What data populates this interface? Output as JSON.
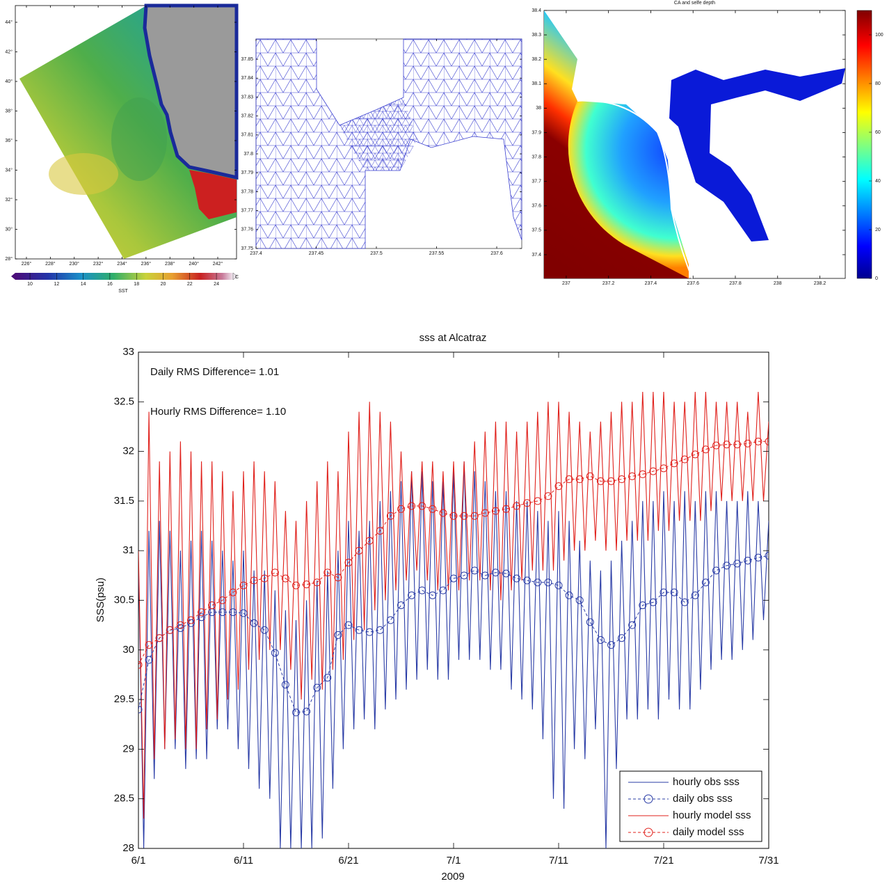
{
  "chart_data": [
    {
      "type": "map",
      "xlim": [
        225.07,
        243.57
      ],
      "ylim": [
        28,
        45.13
      ],
      "xticks": [
        {
          "value": 226,
          "label": "226°"
        },
        {
          "value": 228,
          "label": "228°"
        },
        {
          "value": 230,
          "label": "230°"
        },
        {
          "value": 232,
          "label": "232°"
        },
        {
          "value": 234,
          "label": "234°"
        },
        {
          "value": 236,
          "label": "236°"
        },
        {
          "value": 238,
          "label": "238°"
        },
        {
          "value": 240,
          "label": "240°"
        },
        {
          "value": 242,
          "label": "242°"
        }
      ],
      "yticks": [
        {
          "value": 28,
          "label": "28°"
        },
        {
          "value": 30,
          "label": "30°"
        },
        {
          "value": 32,
          "label": "32°"
        },
        {
          "value": 34,
          "label": "34°"
        },
        {
          "value": 36,
          "label": "36°"
        },
        {
          "value": 38,
          "label": "38°"
        },
        {
          "value": 40,
          "label": "40°"
        },
        {
          "value": 42,
          "label": "42°"
        },
        {
          "value": 44,
          "label": "44°"
        }
      ],
      "colorbar": {
        "orientation": "horizontal",
        "clim": [
          8.9,
          25.25
        ],
        "ticks": [
          10,
          12,
          14,
          16,
          18,
          20,
          22,
          24
        ],
        "label": "SST",
        "unit": "C"
      }
    },
    {
      "type": "mesh",
      "xlim": [
        237.4,
        237.6208
      ],
      "ylim": [
        37.75,
        37.8607
      ],
      "xticks": [
        237.4,
        237.45,
        237.5,
        237.55,
        237.6
      ],
      "yticks": [
        37.75,
        37.76,
        37.77,
        37.78,
        37.79,
        37.8,
        37.81,
        37.82,
        37.83,
        37.84,
        37.85
      ]
    },
    {
      "type": "map",
      "title": "CA  and selfe depth",
      "xlim": [
        236.895,
        238.32
      ],
      "ylim": [
        37.303,
        38.4
      ],
      "xticks": [
        237,
        237.2,
        237.4,
        237.6,
        237.8,
        238,
        238.2
      ],
      "yticks": [
        37.4,
        37.5,
        37.6,
        37.7,
        37.8,
        37.9,
        38,
        38.1,
        38.2,
        38.3,
        38.4
      ],
      "colorbar": {
        "orientation": "vertical",
        "clim": [
          0,
          110
        ],
        "ticks": [
          0,
          20,
          40,
          60,
          80,
          100
        ]
      }
    },
    {
      "type": "line",
      "title": "sss at Alcatraz",
      "xlabel": "2009",
      "ylabel": "SSS(psu)",
      "annotations": [
        "Daily RMS Difference= 1.01",
        "Hourly RMS Difference= 1.10"
      ],
      "xlim": [
        0,
        60
      ],
      "ylim": [
        28,
        33
      ],
      "xticks": [
        {
          "value": 0,
          "label": "6/1"
        },
        {
          "value": 10,
          "label": "6/11"
        },
        {
          "value": 20,
          "label": "6/21"
        },
        {
          "value": 30,
          "label": "7/1"
        },
        {
          "value": 40,
          "label": "7/11"
        },
        {
          "value": 50,
          "label": "7/21"
        },
        {
          "value": 60,
          "label": "7/31"
        }
      ],
      "yticks": [
        28,
        28.5,
        29,
        29.5,
        30,
        30.5,
        31,
        31.5,
        32,
        32.5,
        33
      ],
      "legend": "lower right",
      "x": [
        0,
        0.5,
        1,
        1.5,
        2,
        2.5,
        3,
        3.5,
        4,
        4.5,
        5,
        5.5,
        6,
        6.5,
        7,
        7.5,
        8,
        8.5,
        9,
        9.5,
        10,
        10.5,
        11,
        11.5,
        12,
        12.5,
        13,
        13.5,
        14,
        14.5,
        15,
        15.5,
        16,
        16.5,
        17,
        17.5,
        18,
        18.5,
        19,
        19.5,
        20,
        20.5,
        21,
        21.5,
        22,
        22.5,
        23,
        23.5,
        24,
        24.5,
        25,
        25.5,
        26,
        26.5,
        27,
        27.5,
        28,
        28.5,
        29,
        29.5,
        30,
        30.5,
        31,
        31.5,
        32,
        32.5,
        33,
        33.5,
        34,
        34.5,
        35,
        35.5,
        36,
        36.5,
        37,
        37.5,
        38,
        38.5,
        39,
        39.5,
        40,
        40.5,
        41,
        41.5,
        42,
        42.5,
        43,
        43.5,
        44,
        44.5,
        45,
        45.5,
        46,
        46.5,
        47,
        47.5,
        48,
        48.5,
        49,
        49.5,
        50,
        50.5,
        51,
        51.5,
        52,
        52.5,
        53,
        53.5,
        54,
        54.5,
        55,
        55.5,
        56,
        56.5,
        57,
        57.5,
        58,
        58.5,
        59,
        59.5,
        60
      ],
      "series": [
        {
          "name": "hourly obs sss",
          "color": "#2a3ca6",
          "linestyle": "solid",
          "marker": "none",
          "values": [
            30.9,
            28.0,
            31.2,
            28.7,
            31.3,
            29.0,
            31.2,
            29.0,
            31.0,
            28.8,
            31.1,
            28.9,
            31.2,
            28.9,
            31.1,
            29.2,
            31.0,
            29.2,
            30.9,
            29.0,
            31.0,
            28.8,
            30.8,
            28.6,
            30.8,
            28.5,
            30.6,
            28.0,
            30.4,
            28.0,
            30.3,
            28.0,
            30.5,
            28.0,
            30.7,
            28.1,
            30.8,
            28.6,
            31.0,
            29.0,
            31.3,
            29.2,
            31.2,
            29.3,
            31.3,
            29.2,
            31.5,
            29.4,
            31.6,
            29.5,
            31.7,
            29.6,
            31.8,
            29.7,
            31.8,
            29.8,
            31.7,
            29.7,
            31.7,
            29.7,
            31.8,
            29.9,
            31.9,
            29.9,
            31.8,
            29.9,
            31.7,
            29.8,
            31.6,
            29.8,
            31.6,
            29.6,
            31.5,
            29.5,
            31.5,
            29.4,
            31.4,
            29.1,
            31.3,
            28.5,
            31.4,
            28.4,
            31.3,
            29.0,
            31.1,
            28.9,
            30.9,
            29.2,
            30.8,
            28.0,
            30.9,
            28.8,
            31.1,
            29.3,
            31.3,
            29.3,
            31.5,
            29.4,
            31.5,
            29.3,
            31.6,
            29.5,
            31.5,
            29.4,
            31.6,
            29.4,
            31.5,
            29.6,
            31.6,
            29.8,
            31.6,
            29.9,
            31.5,
            29.9,
            31.5,
            30.0,
            31.6,
            30.1,
            31.5,
            30.3,
            31.3
          ]
        },
        {
          "name": "daily obs sss",
          "color": "#2a3ca6",
          "linestyle": "dashed",
          "marker": "circle",
          "x": [
            0,
            1,
            2,
            3,
            4,
            5,
            6,
            7,
            8,
            9,
            10,
            11,
            12,
            13,
            14,
            15,
            16,
            17,
            18,
            19,
            20,
            21,
            22,
            23,
            24,
            25,
            26,
            27,
            28,
            29,
            30,
            31,
            32,
            33,
            34,
            35,
            36,
            37,
            38,
            39,
            40,
            41,
            42,
            43,
            44,
            45,
            46,
            47,
            48,
            49,
            50,
            51,
            52,
            53,
            54,
            55,
            56,
            57,
            58,
            59,
            60
          ],
          "values": [
            29.4,
            29.9,
            30.12,
            30.2,
            30.22,
            30.27,
            30.33,
            30.38,
            30.38,
            30.38,
            30.37,
            30.27,
            30.2,
            29.97,
            29.65,
            29.37,
            29.38,
            29.62,
            29.72,
            30.15,
            30.25,
            30.2,
            30.18,
            30.2,
            30.3,
            30.45,
            30.55,
            30.6,
            30.55,
            30.6,
            30.72,
            30.75,
            30.8,
            30.75,
            30.78,
            30.77,
            30.72,
            30.7,
            30.68,
            30.68,
            30.65,
            30.55,
            30.5,
            30.28,
            30.1,
            30.05,
            30.12,
            30.25,
            30.45,
            30.48,
            30.58,
            30.58,
            30.48,
            30.55,
            30.68,
            30.8,
            30.85,
            30.87,
            30.9,
            30.93,
            30.95
          ]
        },
        {
          "name": "hourly model sss",
          "color": "#e0201b",
          "linestyle": "solid",
          "marker": "none",
          "values": [
            31.0,
            28.3,
            32.4,
            28.9,
            31.9,
            29.0,
            32.0,
            29.1,
            32.1,
            29.0,
            32.0,
            29.0,
            31.9,
            29.2,
            31.9,
            29.3,
            31.8,
            29.5,
            31.6,
            29.6,
            31.8,
            29.8,
            31.9,
            29.9,
            31.8,
            30.0,
            31.7,
            30.0,
            31.4,
            29.8,
            31.3,
            29.5,
            31.5,
            29.7,
            31.7,
            29.6,
            31.9,
            29.8,
            31.8,
            29.9,
            32.2,
            30.1,
            32.4,
            30.2,
            32.5,
            30.4,
            32.4,
            30.5,
            32.3,
            30.6,
            32.0,
            30.7,
            31.8,
            30.8,
            31.9,
            30.7,
            31.9,
            30.6,
            31.8,
            30.6,
            31.9,
            30.6,
            31.9,
            30.7,
            32.1,
            30.7,
            32.2,
            30.6,
            32.3,
            30.5,
            32.3,
            30.6,
            32.2,
            30.7,
            32.3,
            30.8,
            32.4,
            30.8,
            32.5,
            30.8,
            32.5,
            30.9,
            32.4,
            31.0,
            32.3,
            31.0,
            32.2,
            31.1,
            32.3,
            31.0,
            32.4,
            31.0,
            32.5,
            31.1,
            32.5,
            31.1,
            32.6,
            31.1,
            32.6,
            31.2,
            32.6,
            31.2,
            32.5,
            31.3,
            32.5,
            31.3,
            32.6,
            31.3,
            32.6,
            31.4,
            32.5,
            31.5,
            32.5,
            31.5,
            32.5,
            31.5,
            32.4,
            31.5,
            32.6,
            31.5,
            32.3
          ]
        },
        {
          "name": "daily model sss",
          "color": "#e0201b",
          "linestyle": "dashed",
          "marker": "circle",
          "x": [
            0,
            1,
            2,
            3,
            4,
            5,
            6,
            7,
            8,
            9,
            10,
            11,
            12,
            13,
            14,
            15,
            16,
            17,
            18,
            19,
            20,
            21,
            22,
            23,
            24,
            25,
            26,
            27,
            28,
            29,
            30,
            31,
            32,
            33,
            34,
            35,
            36,
            37,
            38,
            39,
            40,
            41,
            42,
            43,
            44,
            45,
            46,
            47,
            48,
            49,
            50,
            51,
            52,
            53,
            54,
            55,
            56,
            57,
            58,
            59,
            60
          ],
          "values": [
            29.85,
            30.05,
            30.12,
            30.2,
            30.25,
            30.3,
            30.38,
            30.45,
            30.5,
            30.58,
            30.65,
            30.7,
            30.72,
            30.78,
            30.72,
            30.65,
            30.66,
            30.68,
            30.78,
            30.73,
            30.88,
            31.0,
            31.1,
            31.2,
            31.35,
            31.42,
            31.45,
            31.45,
            31.42,
            31.38,
            31.35,
            31.35,
            31.35,
            31.38,
            31.4,
            31.42,
            31.45,
            31.48,
            31.5,
            31.55,
            31.65,
            31.72,
            31.72,
            31.75,
            31.7,
            31.7,
            31.72,
            31.75,
            31.77,
            31.8,
            31.83,
            31.88,
            31.92,
            31.97,
            32.02,
            32.06,
            32.07,
            32.07,
            32.08,
            32.1,
            32.1
          ]
        }
      ]
    }
  ]
}
